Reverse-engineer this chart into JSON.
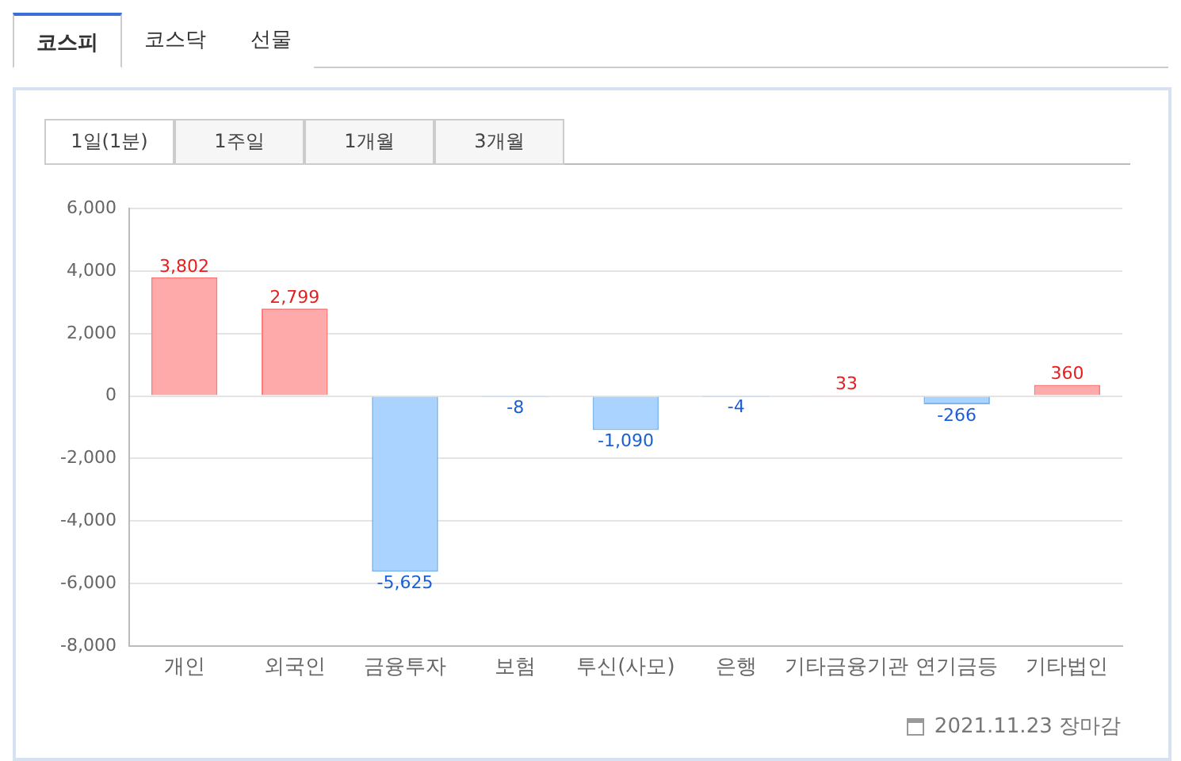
{
  "chart_data": {
    "type": "bar",
    "categories": [
      "개인",
      "외국인",
      "금융투자",
      "보험",
      "투신(사모)",
      "은행",
      "기타금융기관",
      "연기금등",
      "기타법인"
    ],
    "values": [
      3802,
      2799,
      -5625,
      -8,
      -1090,
      -4,
      33,
      -266,
      360
    ],
    "value_labels": [
      "3,802",
      "2,799",
      "-5,625",
      "-8",
      "-1,090",
      "-4",
      "33",
      "-266",
      "360"
    ],
    "colors": [
      "#ffaaaa",
      "#ffaaaa",
      "#aad4ff",
      "#aad4ff",
      "#aad4ff",
      "#aad4ff",
      "#ffaaaa",
      "#aad4ff",
      "#ffaaaa"
    ],
    "ylim": [
      -8000,
      6000
    ],
    "yticks": [
      {
        "value": -8000,
        "label": "-8,000"
      },
      {
        "value": -6000,
        "label": "-6,000"
      },
      {
        "value": -4000,
        "label": "-4,000"
      },
      {
        "value": -2000,
        "label": "-2,000"
      },
      0,
      {
        "value": 2000,
        "label": "2,000"
      },
      {
        "value": 4000,
        "label": "4,000"
      },
      {
        "value": 6000,
        "label": "6,000"
      }
    ],
    "grid": "y",
    "legend": false,
    "annotations": [
      "코스피",
      "코스닥",
      "선물",
      "1일(1분)",
      "1주일",
      "1개월",
      "3개월",
      "2021.11.23 장마감"
    ]
  }
}
